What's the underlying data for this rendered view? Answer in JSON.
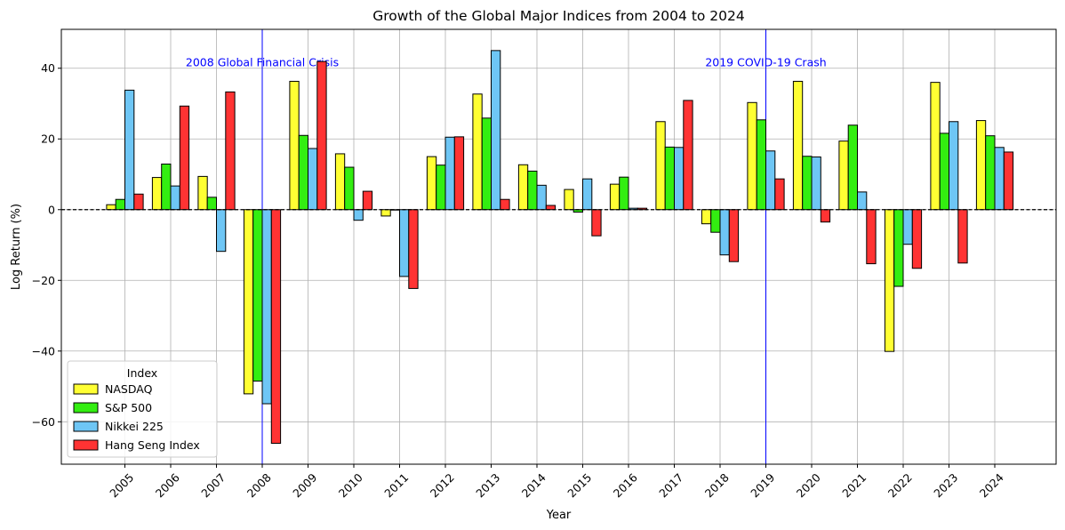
{
  "chart_data": {
    "type": "bar",
    "title": "Growth of the Global Major Indices from 2004 to 2024",
    "xlabel": "Year",
    "ylabel": "Log Return (%)",
    "ylim": [
      -72,
      51
    ],
    "yticks": [
      -60,
      -40,
      -20,
      0,
      20,
      40
    ],
    "grid": true,
    "categories": [
      "2005",
      "2006",
      "2007",
      "2008",
      "2009",
      "2010",
      "2011",
      "2012",
      "2013",
      "2014",
      "2015",
      "2016",
      "2017",
      "2018",
      "2019",
      "2020",
      "2021",
      "2022",
      "2023",
      "2024"
    ],
    "series": [
      {
        "name": "NASDAQ",
        "color": "#ffff33",
        "values": [
          1.4,
          9.1,
          9.4,
          -52.1,
          36.3,
          15.8,
          -1.8,
          15.0,
          32.7,
          12.7,
          5.7,
          7.2,
          24.9,
          -4.0,
          30.3,
          36.3,
          19.4,
          -40.1,
          36.0,
          25.2
        ]
      },
      {
        "name": "S&P 500",
        "color": "#33ee11",
        "values": [
          2.9,
          12.9,
          3.5,
          -48.5,
          21.0,
          12.0,
          0.0,
          12.6,
          25.9,
          10.9,
          -0.7,
          9.2,
          17.7,
          -6.4,
          25.4,
          15.1,
          23.9,
          -21.7,
          21.6,
          20.9
        ]
      },
      {
        "name": "Nikkei 225",
        "color": "#6ec6f5",
        "values": [
          33.8,
          6.7,
          -11.8,
          -54.9,
          17.3,
          -3.0,
          -18.9,
          20.5,
          45.0,
          6.9,
          8.7,
          0.4,
          17.6,
          -12.8,
          16.6,
          14.9,
          5.0,
          -9.8,
          24.9,
          17.6
        ]
      },
      {
        "name": "Hang Seng Index",
        "color": "#ff3333",
        "values": [
          4.4,
          29.3,
          33.3,
          -66.1,
          41.9,
          5.2,
          -22.3,
          20.6,
          2.9,
          1.2,
          -7.4,
          0.4,
          30.9,
          -14.7,
          8.7,
          -3.5,
          -15.3,
          -16.6,
          -15.1,
          16.3
        ]
      }
    ],
    "reference_lines": [
      {
        "x": "2008",
        "label": "2008 Global Financial Crisis",
        "color": "#0000ff"
      },
      {
        "x": "2019",
        "label": "2019 COVID-19 Crash",
        "color": "#0000ff"
      }
    ],
    "zero_line": {
      "y": 0,
      "style": "dashed",
      "color": "#000000"
    },
    "legend": {
      "title": "Index",
      "placement": "lower-left"
    }
  }
}
